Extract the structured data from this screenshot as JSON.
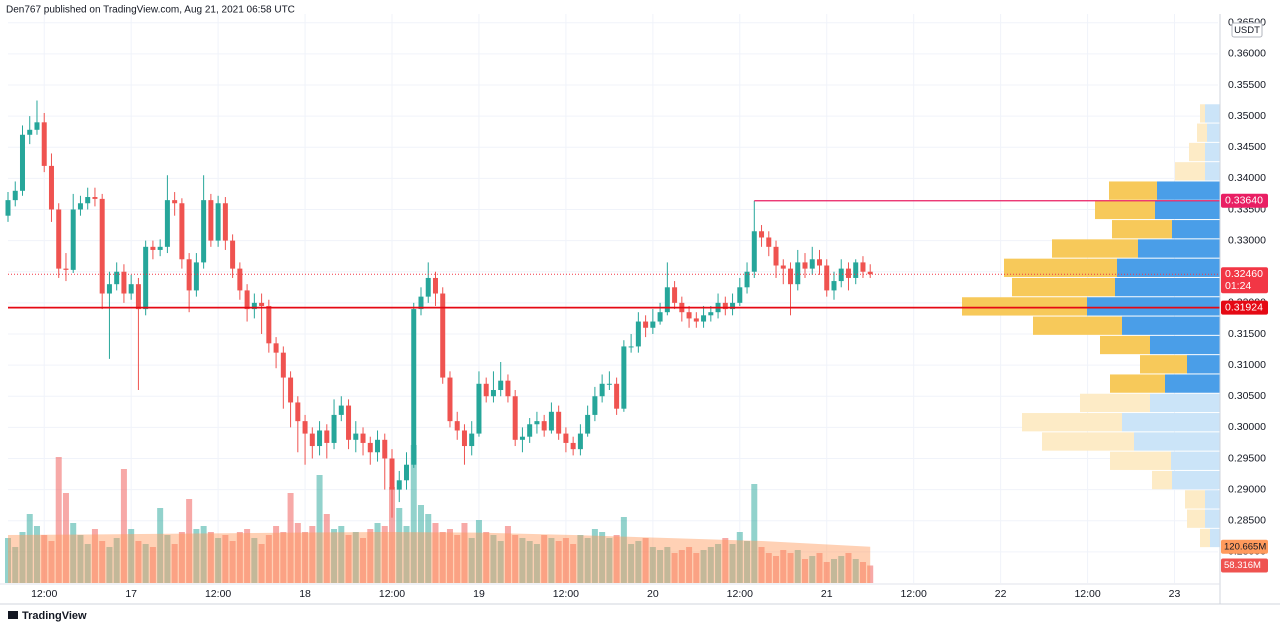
{
  "chart_data": {
    "type": "candlestick",
    "header": "Den767 published on TradingView.com, Aug 21, 2021 06:58 UTC",
    "footer": "TradingView",
    "currency": "USDT",
    "up_color": "#26a69a",
    "down_color": "#ef5350",
    "xlim": [
      7,
      174
    ],
    "xticks": [
      {
        "value": 12,
        "label": "12:00"
      },
      {
        "value": 24,
        "label": "17"
      },
      {
        "value": 36,
        "label": "12:00"
      },
      {
        "value": 48,
        "label": "18"
      },
      {
        "value": 60,
        "label": "12:00"
      },
      {
        "value": 72,
        "label": "19"
      },
      {
        "value": 84,
        "label": "12:00"
      },
      {
        "value": 96,
        "label": "20"
      },
      {
        "value": 108,
        "label": "12:00"
      },
      {
        "value": 120,
        "label": "21"
      },
      {
        "value": 132,
        "label": "12:00"
      },
      {
        "value": 144,
        "label": "22"
      },
      {
        "value": 156,
        "label": "12:00"
      },
      {
        "value": 168,
        "label": "23"
      }
    ],
    "ylim": [
      0.275,
      0.3664
    ],
    "yticks": [
      {
        "value": 0.365,
        "label": "0.36500"
      },
      {
        "value": 0.36,
        "label": "0.36000"
      },
      {
        "value": 0.355,
        "label": "0.35500"
      },
      {
        "value": 0.35,
        "label": "0.35000"
      },
      {
        "value": 0.345,
        "label": "0.34500"
      },
      {
        "value": 0.34,
        "label": "0.34000"
      },
      {
        "value": 0.335,
        "label": "0.33500"
      },
      {
        "value": 0.33,
        "label": "0.33000"
      },
      {
        "value": 0.325,
        "label": "0.32500"
      },
      {
        "value": 0.32,
        "label": "0.32000"
      },
      {
        "value": 0.315,
        "label": "0.31500"
      },
      {
        "value": 0.31,
        "label": "0.31000"
      },
      {
        "value": 0.305,
        "label": "0.30500"
      },
      {
        "value": 0.3,
        "label": "0.30000"
      },
      {
        "value": 0.295,
        "label": "0.29500"
      },
      {
        "value": 0.29,
        "label": "0.29000"
      },
      {
        "value": 0.285,
        "label": "0.28500"
      },
      {
        "value": 0.28,
        "label": "0.28000"
      }
    ],
    "grid": true,
    "x": [
      7,
      8,
      9,
      10,
      11,
      12,
      13,
      14,
      15,
      16,
      17,
      18,
      19,
      20,
      21,
      22,
      23,
      24,
      25,
      26,
      27,
      28,
      29,
      30,
      31,
      32,
      33,
      34,
      35,
      36,
      37,
      38,
      39,
      40,
      41,
      42,
      43,
      44,
      45,
      46,
      47,
      48,
      49,
      50,
      51,
      52,
      53,
      54,
      55,
      56,
      57,
      58,
      59,
      60,
      61,
      62,
      63,
      64,
      65,
      66,
      67,
      68,
      69,
      70,
      71,
      72,
      73,
      74,
      75,
      76,
      77,
      78,
      79,
      80,
      81,
      82,
      83,
      84,
      85,
      86,
      87,
      88,
      89,
      90,
      91,
      92,
      93,
      94,
      95,
      96,
      97,
      98,
      99,
      100,
      101,
      102,
      103,
      104,
      105,
      106,
      107,
      108,
      109,
      110,
      111,
      112,
      113,
      114,
      115,
      116,
      117,
      118,
      119,
      120,
      121,
      122,
      123,
      124,
      125,
      126
    ],
    "open": [
      0.334,
      0.3365,
      0.338,
      0.347,
      0.3478,
      0.349,
      0.342,
      0.335,
      0.3255,
      0.3253,
      0.335,
      0.336,
      0.337,
      0.3367,
      0.3215,
      0.323,
      0.325,
      0.3215,
      0.323,
      0.319,
      0.329,
      0.3285,
      0.329,
      0.3365,
      0.336,
      0.327,
      0.322,
      0.3265,
      0.3365,
      0.33,
      0.336,
      0.33,
      0.3255,
      0.322,
      0.319,
      0.32,
      0.3195,
      0.3135,
      0.312,
      0.308,
      0.304,
      0.301,
      0.299,
      0.297,
      0.2995,
      0.2975,
      0.302,
      0.3035,
      0.298,
      0.299,
      0.2975,
      0.296,
      0.298,
      0.295,
      0.29,
      0.2915,
      0.294,
      0.319,
      0.321,
      0.324,
      0.3215,
      0.308,
      0.301,
      0.2995,
      0.297,
      0.299,
      0.307,
      0.305,
      0.306,
      0.3075,
      0.305,
      0.298,
      0.2985,
      0.3005,
      0.301,
      0.2995,
      0.3025,
      0.299,
      0.2975,
      0.2965,
      0.299,
      0.302,
      0.305,
      0.307,
      0.307,
      0.303,
      0.313,
      0.313,
      0.317,
      0.316,
      0.317,
      0.3185,
      0.3225,
      0.32,
      0.3185,
      0.3175,
      0.317,
      0.318,
      0.3185,
      0.32,
      0.319,
      0.32,
      0.3225,
      0.325,
      0.3315,
      0.3305,
      0.329,
      0.326,
      0.3255,
      0.323,
      0.3265,
      0.3255,
      0.327,
      0.326,
      0.322,
      0.3235,
      0.3255,
      0.324,
      0.3265,
      0.325
    ],
    "high": [
      0.3378,
      0.3395,
      0.3485,
      0.35,
      0.3525,
      0.3505,
      0.344,
      0.336,
      0.328,
      0.3375,
      0.3372,
      0.3385,
      0.3385,
      0.3375,
      0.325,
      0.3265,
      0.3262,
      0.3245,
      0.324,
      0.33,
      0.33,
      0.3302,
      0.3405,
      0.3378,
      0.3368,
      0.328,
      0.328,
      0.3405,
      0.3375,
      0.3372,
      0.337,
      0.331,
      0.3265,
      0.323,
      0.3215,
      0.3215,
      0.3205,
      0.3145,
      0.313,
      0.309,
      0.305,
      0.302,
      0.3,
      0.301,
      0.3005,
      0.3045,
      0.305,
      0.3045,
      0.301,
      0.3,
      0.2985,
      0.2995,
      0.299,
      0.2965,
      0.293,
      0.296,
      0.32,
      0.3225,
      0.3265,
      0.325,
      0.3225,
      0.309,
      0.3025,
      0.3005,
      0.301,
      0.309,
      0.308,
      0.309,
      0.3105,
      0.3085,
      0.306,
      0.3,
      0.3015,
      0.3025,
      0.302,
      0.304,
      0.3035,
      0.3,
      0.2985,
      0.3005,
      0.3035,
      0.3065,
      0.3085,
      0.309,
      0.308,
      0.314,
      0.315,
      0.3185,
      0.318,
      0.319,
      0.32,
      0.3265,
      0.3235,
      0.321,
      0.3195,
      0.3185,
      0.3195,
      0.3195,
      0.3215,
      0.321,
      0.3215,
      0.324,
      0.3265,
      0.3364,
      0.3325,
      0.3315,
      0.33,
      0.327,
      0.3265,
      0.3285,
      0.328,
      0.329,
      0.3285,
      0.327,
      0.325,
      0.327,
      0.3265,
      0.327,
      0.3275,
      0.3262
    ],
    "low": [
      0.333,
      0.3355,
      0.3372,
      0.3455,
      0.347,
      0.341,
      0.333,
      0.324,
      0.3235,
      0.3248,
      0.334,
      0.335,
      0.3355,
      0.319,
      0.311,
      0.322,
      0.32,
      0.3205,
      0.306,
      0.318,
      0.327,
      0.3275,
      0.328,
      0.334,
      0.3255,
      0.3185,
      0.321,
      0.3255,
      0.329,
      0.329,
      0.3285,
      0.324,
      0.3205,
      0.317,
      0.3175,
      0.315,
      0.312,
      0.3095,
      0.303,
      0.3,
      0.296,
      0.294,
      0.295,
      0.2955,
      0.295,
      0.2965,
      0.301,
      0.2965,
      0.296,
      0.2955,
      0.294,
      0.2945,
      0.29,
      0.2855,
      0.288,
      0.29,
      0.2935,
      0.318,
      0.32,
      0.3195,
      0.307,
      0.3,
      0.298,
      0.294,
      0.2955,
      0.2985,
      0.304,
      0.304,
      0.305,
      0.304,
      0.297,
      0.296,
      0.2975,
      0.299,
      0.2985,
      0.299,
      0.298,
      0.296,
      0.2955,
      0.2955,
      0.2985,
      0.301,
      0.304,
      0.306,
      0.302,
      0.3025,
      0.312,
      0.312,
      0.3145,
      0.315,
      0.3165,
      0.318,
      0.319,
      0.317,
      0.316,
      0.316,
      0.316,
      0.317,
      0.3175,
      0.318,
      0.318,
      0.3195,
      0.3215,
      0.324,
      0.329,
      0.3275,
      0.324,
      0.323,
      0.318,
      0.322,
      0.324,
      0.3245,
      0.3245,
      0.321,
      0.3205,
      0.3225,
      0.322,
      0.323,
      0.324,
      0.324
    ],
    "close": [
      0.3365,
      0.338,
      0.347,
      0.3478,
      0.349,
      0.342,
      0.335,
      0.3255,
      0.3253,
      0.335,
      0.336,
      0.337,
      0.3367,
      0.3215,
      0.323,
      0.325,
      0.3215,
      0.323,
      0.319,
      0.329,
      0.3285,
      0.329,
      0.3365,
      0.336,
      0.327,
      0.322,
      0.3265,
      0.3365,
      0.33,
      0.336,
      0.33,
      0.3255,
      0.322,
      0.319,
      0.32,
      0.3195,
      0.3135,
      0.312,
      0.308,
      0.304,
      0.301,
      0.299,
      0.297,
      0.2995,
      0.2975,
      0.302,
      0.3035,
      0.298,
      0.299,
      0.2975,
      0.296,
      0.298,
      0.295,
      0.29,
      0.2915,
      0.294,
      0.319,
      0.321,
      0.324,
      0.3215,
      0.308,
      0.301,
      0.2995,
      0.297,
      0.299,
      0.307,
      0.305,
      0.306,
      0.3075,
      0.305,
      0.298,
      0.2985,
      0.3005,
      0.301,
      0.2995,
      0.3025,
      0.299,
      0.2975,
      0.2965,
      0.299,
      0.302,
      0.305,
      0.307,
      0.307,
      0.303,
      0.313,
      0.313,
      0.317,
      0.316,
      0.317,
      0.3185,
      0.3225,
      0.32,
      0.3185,
      0.3175,
      0.317,
      0.318,
      0.3185,
      0.32,
      0.319,
      0.32,
      0.3225,
      0.325,
      0.3315,
      0.3305,
      0.329,
      0.326,
      0.3255,
      0.323,
      0.3265,
      0.3255,
      0.327,
      0.326,
      0.322,
      0.3235,
      0.3255,
      0.324,
      0.3265,
      0.325,
      0.3246
    ],
    "volume": {
      "values": [
        150,
        120,
        170,
        230,
        190,
        160,
        140,
        420,
        300,
        200,
        160,
        130,
        180,
        140,
        120,
        150,
        380,
        180,
        140,
        130,
        120,
        250,
        160,
        130,
        170,
        280,
        180,
        190,
        170,
        150,
        160,
        140,
        170,
        180,
        150,
        130,
        160,
        190,
        170,
        300,
        200,
        170,
        190,
        360,
        230,
        180,
        190,
        160,
        170,
        150,
        180,
        200,
        190,
        320,
        250,
        190,
        460,
        260,
        230,
        200,
        170,
        180,
        160,
        200,
        150,
        210,
        170,
        160,
        140,
        190,
        160,
        150,
        140,
        130,
        160,
        150,
        140,
        150,
        130,
        160,
        150,
        180,
        170,
        150,
        160,
        220,
        130,
        140,
        150,
        120,
        110,
        120,
        100,
        110,
        120,
        100,
        110,
        120,
        130,
        150,
        130,
        170,
        140,
        330,
        120,
        100,
        90,
        110,
        100,
        110,
        80,
        90,
        100,
        70,
        80,
        90,
        100,
        80,
        70,
        58.316
      ],
      "last_label": "58.316M"
    },
    "volume_ma": {
      "x": [
        7,
        20,
        33,
        46,
        59,
        72,
        85,
        98,
        111,
        126
      ],
      "values": [
        160,
        162,
        165,
        168,
        170,
        168,
        160,
        150,
        140,
        120.665
      ],
      "last_label": "120.665M",
      "color": "#ff9a5c"
    },
    "volume_profile": {
      "bins": [
        0.2806,
        0.2837,
        0.2868,
        0.2899,
        0.293,
        0.2961,
        0.2992,
        0.3023,
        0.3054,
        0.3085,
        0.3116,
        0.3147,
        0.3178,
        0.3209,
        0.324,
        0.3271,
        0.3302,
        0.3333,
        0.3364,
        0.3395,
        0.3426,
        0.3457,
        0.3488,
        0.3519
      ],
      "up": [
        10,
        15,
        15,
        48,
        49,
        86,
        98,
        70,
        55,
        33,
        70,
        98,
        133,
        105,
        103,
        82,
        48,
        65,
        63,
        15,
        15,
        13,
        15
      ],
      "down": [
        10,
        18,
        20,
        20,
        61,
        92,
        100,
        70,
        55,
        47,
        50,
        89,
        125,
        103,
        113,
        86,
        60,
        60,
        48,
        30,
        16,
        10,
        5
      ],
      "value_area": [
        0.3054,
        0.3395
      ],
      "up_color": "#4a9ee8",
      "down_color": "#f7c95a",
      "up_color_light": "#cbe4f8",
      "down_color_light": "#fdebc6"
    },
    "high_line": {
      "value": 0.3364,
      "label": "0.33640",
      "color": "#e91e63",
      "from_x": 110
    },
    "support_line": {
      "value": 0.31924,
      "label": "0.31924",
      "color": "#e50914"
    },
    "last_price": {
      "value": 0.3246,
      "label": "0.32460",
      "countdown": "01:24",
      "color": "#f23645"
    }
  }
}
